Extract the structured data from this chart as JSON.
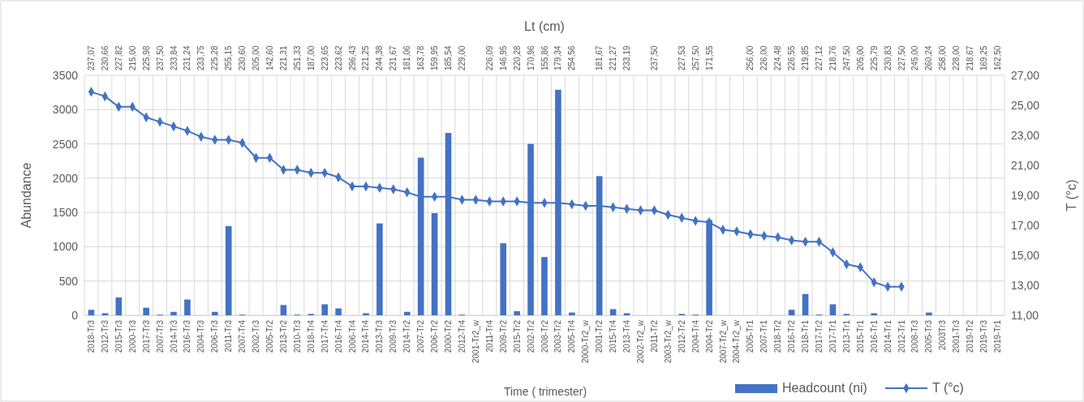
{
  "chart_data": {
    "type": "bar",
    "xlabel": "Time ( trimester)",
    "ylabel": "Abundance",
    "y2label": "T (°c)",
    "x2label": "Lt (cm)",
    "categories": [
      "2018-Tr3",
      "2012-Tr3",
      "2015-Tr3",
      "2000-Tr3",
      "2017-Tr3",
      "2007-Tr3",
      "2014-Tr3",
      "2016-Tr3",
      "2004-Tr3",
      "2006-Tr3",
      "2011-Tr3",
      "2007-Tr4",
      "2002-Tr3",
      "2005-Tr2",
      "2013-Tr2",
      "2010-Tr3",
      "2018-Tr4",
      "2017-Tr4",
      "2016-Tr4",
      "2006-Tr4",
      "2014-Tr4",
      "2013-Tr3",
      "2009-Tr3",
      "2014-Tr2",
      "2007-Tr2",
      "2006-Tr2",
      "2000-Tr2",
      "2012-Tr4",
      "2001-Tr2_w",
      "2011-Tr4",
      "2009-Tr2",
      "2015-Tr2",
      "2002-Tr2",
      "2008-Tr2",
      "2003-Tr2",
      "2005-Tr4",
      "2000-Tr2_w",
      "2001-Tr2",
      "2015-Tr4",
      "2013-Tr4",
      "2002-Tr2_w",
      "2011-Tr2",
      "2003-Tr2_w",
      "2012-Tr2",
      "2004-Tr4",
      "2004-Tr2",
      "2007-Tr2_w",
      "2004-Tr2_w",
      "2005-Tr1",
      "2007-Tr1",
      "2018-Tr2",
      "2016-Tr2",
      "2018-Tr1",
      "2017-Tr2",
      "2017-Tr1",
      "2013-Tr1",
      "2015-Tr1",
      "2016-Tr1",
      "2014-Tr1",
      "2012-Tr1",
      "2008-Tr3",
      "2005-Tr3",
      "2003Tr3",
      "2001-Tr3",
      "2019-Tr2",
      "2019-Tr3",
      "2019-Tr1"
    ],
    "series": [
      {
        "name": "Headcount (ni)",
        "color": "#4472c4",
        "values": [
          80,
          30,
          260,
          null,
          110,
          10,
          50,
          230,
          null,
          50,
          1300,
          10,
          null,
          null,
          150,
          10,
          20,
          160,
          100,
          null,
          30,
          1340,
          null,
          50,
          2300,
          1490,
          2660,
          10,
          null,
          null,
          1050,
          60,
          2500,
          850,
          3290,
          40,
          null,
          2030,
          90,
          30,
          null,
          null,
          null,
          20,
          10,
          1390,
          null,
          null,
          null,
          null,
          null,
          80,
          310,
          10,
          160,
          20,
          null,
          30,
          null,
          null,
          null,
          40,
          null,
          null,
          null,
          null,
          null
        ]
      },
      {
        "name": "T (°c)",
        "type": "line",
        "axis": "y2",
        "color": "#4472c4",
        "values": [
          25.9,
          25.6,
          24.9,
          24.9,
          24.2,
          23.9,
          23.6,
          23.3,
          22.9,
          22.7,
          22.7,
          22.5,
          21.5,
          21.5,
          20.7,
          20.7,
          20.5,
          20.5,
          20.2,
          19.6,
          19.6,
          19.5,
          19.4,
          19.2,
          18.9,
          18.9,
          18.9,
          18.7,
          18.7,
          18.6,
          18.6,
          18.6,
          18.5,
          18.5,
          18.5,
          18.4,
          18.3,
          18.3,
          18.2,
          18.1,
          18.0,
          18.0,
          17.7,
          17.5,
          17.3,
          17.2,
          16.7,
          16.6,
          16.4,
          16.3,
          16.2,
          16.0,
          15.9,
          15.9,
          15.2,
          14.4,
          14.2,
          13.2,
          12.9,
          12.9,
          null,
          null,
          null,
          null,
          null,
          null,
          null
        ]
      }
    ],
    "ylim": [
      0,
      3500
    ],
    "yticks": [
      0,
      500,
      1000,
      1500,
      2000,
      2500,
      3000,
      3500
    ],
    "y2lim": [
      11,
      27
    ],
    "y2ticks": [
      {
        "value": 11,
        "label": "11,00"
      },
      {
        "value": 13,
        "label": "13,00"
      },
      {
        "value": 15,
        "label": "15,00"
      },
      {
        "value": 17,
        "label": "17,00"
      },
      {
        "value": 19,
        "label": "19,00"
      },
      {
        "value": 21,
        "label": "21,00"
      },
      {
        "value": 23,
        "label": "23,00"
      },
      {
        "value": 25,
        "label": "25,00"
      },
      {
        "value": 27,
        "label": "27,00"
      }
    ],
    "annotations": [
      "237,07",
      "230,66",
      "227,82",
      "215,00",
      "225,98",
      "237,50",
      "233,84",
      "231,24",
      "233,75",
      "225,28",
      "255,15",
      "230,60",
      "205,00",
      "142,60",
      "221,31",
      "251,33",
      "187,00",
      "223,65",
      "223,62",
      "296,43",
      "221,25",
      "244,38",
      "231,67",
      "181,06",
      "163,78",
      "159,95",
      "185,54",
      "229,00",
      null,
      "226,09",
      "146,95",
      "220,28",
      "170,96",
      "155,86",
      "179,34",
      "254,56",
      null,
      "181,67",
      "221,27",
      "233,19",
      null,
      "237,50",
      null,
      "227,53",
      "257,50",
      "171,55",
      null,
      null,
      "256,00",
      "226,00",
      "224,48",
      "226,55",
      "219,85",
      "227,12",
      "218,76",
      "247,50",
      "205,00",
      "225,79",
      "230,83",
      "227,50",
      "245,00",
      "260,24",
      "258,00",
      "228,00",
      "218,67",
      "169,25",
      "162,50"
    ],
    "grid": true,
    "legend": "bottom right",
    "marker": "diamond"
  }
}
